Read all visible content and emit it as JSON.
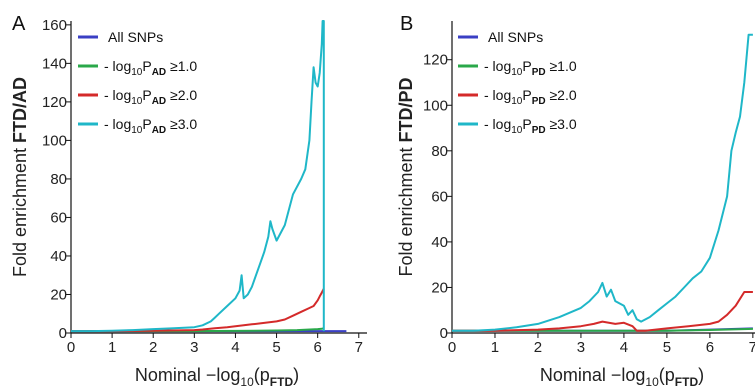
{
  "chart_data": [
    {
      "type": "line",
      "panel": "A",
      "ylabel_prefix": "Fold enrichment",
      "ylabel_bold": "FTD/AD",
      "xlabel_prefix": "Nominal −log",
      "xlabel_sub": "10",
      "xlabel_paren": "(p",
      "xlabel_psub": "FTD",
      "xlabel_close": ")",
      "xlim": [
        0,
        7.2
      ],
      "ylim": [
        0,
        162
      ],
      "xticks": [
        0,
        1,
        2,
        3,
        4,
        5,
        6,
        7
      ],
      "yticks": [
        0,
        20,
        40,
        60,
        80,
        100,
        120,
        140,
        160
      ],
      "legend_position": "top-left",
      "series": [
        {
          "label_plain": "All SNPs",
          "color": "#3a3fc4",
          "x": [
            0,
            1,
            2,
            3,
            4,
            5,
            6,
            6.1,
            6.7
          ],
          "y": [
            1,
            1,
            1,
            1,
            1,
            1,
            1,
            1,
            1
          ]
        },
        {
          "label_prefix": "- log",
          "label_sub1": "10",
          "label_P": "P",
          "label_sub2": "AD",
          "label_suffix": " ≥1.0",
          "color": "#2aa84a",
          "x": [
            0,
            1,
            2,
            3,
            4,
            5,
            5.5,
            6,
            6.1,
            6.15
          ],
          "y": [
            1,
            1,
            1,
            1,
            1.1,
            1.3,
            1.5,
            2,
            2.2,
            2.5
          ]
        },
        {
          "label_prefix": "- log",
          "label_sub1": "10",
          "label_P": "P",
          "label_sub2": "AD",
          "label_suffix": " ≥2.0",
          "color": "#d42a2a",
          "x": [
            0,
            1,
            2,
            3,
            3.2,
            3.5,
            3.8,
            4,
            4.2,
            4.4,
            4.6,
            4.8,
            5,
            5.2,
            5.4,
            5.6,
            5.8,
            5.9,
            6,
            6.05,
            6.1,
            6.15
          ],
          "y": [
            1,
            1,
            1.2,
            1.5,
            1.8,
            2.5,
            3,
            3.5,
            4,
            4.5,
            5,
            5.5,
            6,
            7,
            9,
            11,
            13,
            14,
            17,
            19,
            21,
            23
          ]
        },
        {
          "label_prefix": "- log",
          "label_sub1": "10",
          "label_P": "P",
          "label_sub2": "AD",
          "label_suffix": " ≥3.0",
          "color": "#1fb7c8",
          "x": [
            0,
            0.5,
            1,
            1.5,
            2,
            2.5,
            3,
            3.2,
            3.4,
            3.5,
            3.6,
            3.8,
            4,
            4.1,
            4.15,
            4.2,
            4.3,
            4.4,
            4.5,
            4.6,
            4.7,
            4.8,
            4.85,
            4.9,
            5,
            5.2,
            5.4,
            5.6,
            5.7,
            5.8,
            5.85,
            5.9,
            5.95,
            6,
            6.05,
            6.1,
            6.12,
            6.15,
            6.15
          ],
          "y": [
            1,
            1,
            1.2,
            1.5,
            2,
            2.5,
            3,
            4,
            6,
            8,
            10,
            14,
            18,
            22,
            30,
            18,
            20,
            24,
            30,
            36,
            42,
            50,
            58,
            54,
            48,
            56,
            72,
            80,
            85,
            100,
            120,
            138,
            130,
            128,
            135,
            150,
            162,
            162,
            1
          ]
        }
      ]
    },
    {
      "type": "line",
      "panel": "B",
      "ylabel_prefix": "Fold enrichment",
      "ylabel_bold": "FTD/PD",
      "xlabel_prefix": "Nominal −log",
      "xlabel_sub": "10",
      "xlabel_paren": "(p",
      "xlabel_psub": "FTD",
      "xlabel_close": ")",
      "xlim": [
        0,
        7.05
      ],
      "ylim": [
        0,
        137
      ],
      "xticks": [
        0,
        1,
        2,
        3,
        4,
        5,
        6,
        7
      ],
      "yticks": [
        0,
        20,
        40,
        60,
        80,
        100,
        120
      ],
      "legend_position": "top-left",
      "series": [
        {
          "label_plain": "All SNPs",
          "color": "#3a3fc4",
          "x": [
            0,
            1,
            2,
            3,
            4,
            5,
            6,
            7
          ],
          "y": [
            1,
            1,
            1,
            1,
            1,
            1,
            1.5,
            2
          ]
        },
        {
          "label_prefix": "- log",
          "label_sub1": "10",
          "label_P": "P",
          "label_sub2": "PD",
          "label_suffix": " ≥1.0",
          "color": "#2aa84a",
          "x": [
            0,
            1,
            2,
            3,
            4,
            5,
            6,
            7
          ],
          "y": [
            1,
            1,
            1,
            1,
            1,
            1,
            1.3,
            1.8
          ]
        },
        {
          "label_prefix": "- log",
          "label_sub1": "10",
          "label_P": "P",
          "label_sub2": "PD",
          "label_suffix": " ≥2.0",
          "color": "#d42a2a",
          "x": [
            0,
            1,
            2,
            2.5,
            3,
            3.3,
            3.5,
            3.8,
            4,
            4.2,
            4.3,
            4.5,
            5,
            5.5,
            6,
            6.2,
            6.4,
            6.6,
            6.8,
            7
          ],
          "y": [
            1,
            1,
            1.5,
            2,
            3,
            4,
            5,
            4,
            4.5,
            3,
            1,
            1,
            2,
            3,
            4,
            5,
            8,
            12,
            18,
            18
          ]
        },
        {
          "label_prefix": "- log",
          "label_sub1": "10",
          "label_P": "P",
          "label_sub2": "PD",
          "label_suffix": " ≥3.0",
          "color": "#1fb7c8",
          "x": [
            0,
            0.5,
            1,
            1.5,
            2,
            2.5,
            3,
            3.2,
            3.4,
            3.5,
            3.6,
            3.7,
            3.8,
            4,
            4.1,
            4.2,
            4.3,
            4.4,
            4.6,
            4.8,
            5,
            5.2,
            5.4,
            5.6,
            5.8,
            6,
            6.2,
            6.4,
            6.5,
            6.6,
            6.7,
            6.8,
            6.9,
            7
          ],
          "y": [
            1,
            1,
            1.5,
            2.5,
            4,
            7,
            11,
            14,
            18,
            22,
            16,
            19,
            14,
            12,
            8,
            10,
            6,
            5,
            7,
            10,
            13,
            16,
            20,
            24,
            27,
            33,
            45,
            60,
            80,
            88,
            95,
            110,
            131,
            131
          ]
        }
      ]
    }
  ]
}
